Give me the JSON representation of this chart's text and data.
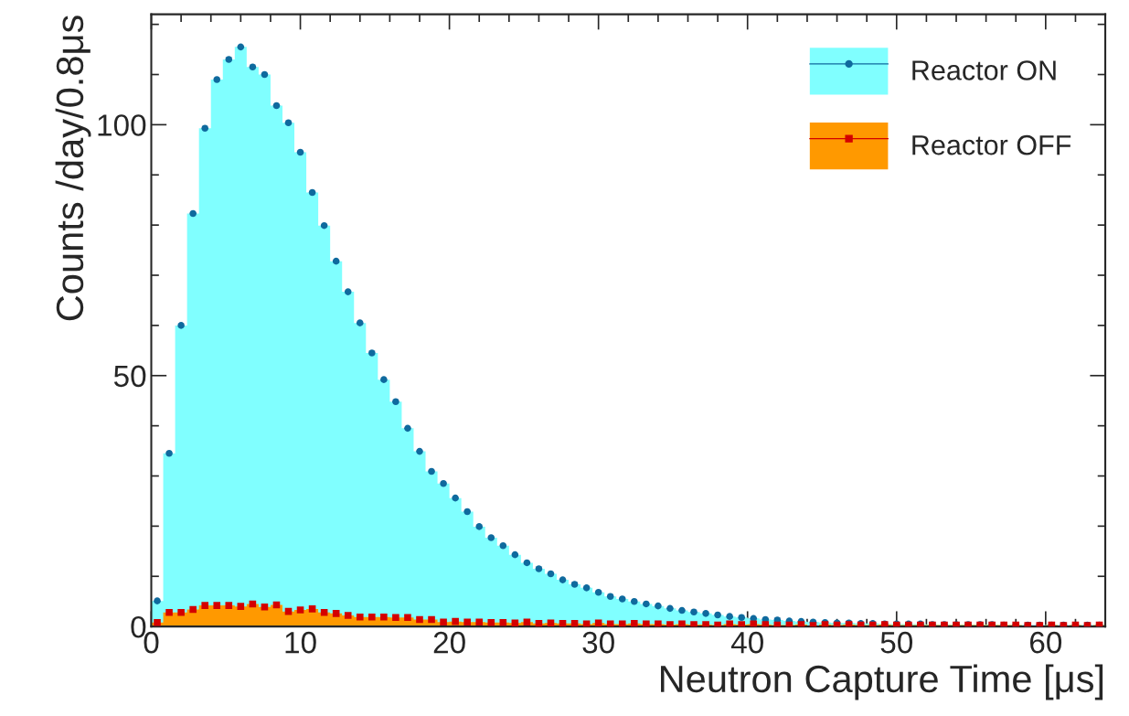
{
  "chart_data": {
    "type": "histogram",
    "xlabel": "Neutron Capture Time [μs]",
    "ylabel": "Counts /day/0.8μs",
    "bins": [
      0,
      0.8,
      1.6,
      2.4,
      3.2,
      4,
      4.8,
      5.6,
      6.4,
      7.2,
      8,
      8.8,
      9.6,
      10.4,
      11.2,
      12,
      12.8,
      13.6,
      14.4,
      15.2,
      16,
      16.8,
      17.6,
      18.4,
      19.2,
      20,
      20.8,
      21.6,
      22.4,
      23.2,
      24,
      24.8,
      25.6,
      26.4,
      27.2,
      28,
      28.8,
      29.6,
      30.4,
      31.2,
      32,
      32.8,
      33.6,
      34.4,
      35.2,
      36,
      36.8,
      37.6,
      38.4,
      39.2,
      40,
      40.8,
      41.6,
      42.4,
      43.2,
      44,
      44.8,
      45.6,
      46.4,
      47.2,
      48,
      48.8,
      49.6,
      50.4,
      51.2,
      52,
      52.8,
      53.6,
      54.4,
      55.2,
      56,
      56.8,
      57.6,
      58.4,
      59.2,
      60,
      60.8,
      61.6,
      62.4,
      63.2,
      64
    ],
    "series": [
      {
        "name": "Reactor ON",
        "color": "#80ffff",
        "values": [
          5.1,
          34.5,
          60,
          82.3,
          99.3,
          109,
          113,
          115.5,
          111.5,
          110,
          103.8,
          100.4,
          94.5,
          86.5,
          79.9,
          72.8,
          66.7,
          60.5,
          54.5,
          49.2,
          44.8,
          39.5,
          34.9,
          30.9,
          28.5,
          25.6,
          22.9,
          19.9,
          17.7,
          16.1,
          14.3,
          12.7,
          11.5,
          10.5,
          9.3,
          8.4,
          7.7,
          6.8,
          6.0,
          5.5,
          5.0,
          4.5,
          4.1,
          3.6,
          3.2,
          2.9,
          2.6,
          2.3,
          2.0,
          1.8,
          1.6,
          1.4,
          1.3,
          1.1,
          1.0,
          0.9,
          0.8,
          0.7,
          0.7,
          0.6,
          0.6,
          0.5,
          0.5,
          0.5,
          0.5,
          0.4,
          0.4,
          0.4,
          0.4,
          0.4,
          0.4,
          0.3,
          0.3,
          0.3,
          0.3,
          0.3,
          0.3,
          0.3,
          0.3,
          0.3
        ]
      },
      {
        "name": "Reactor OFF",
        "color": "#ff9900",
        "values": [
          0.8,
          2.8,
          2.8,
          3.4,
          4.2,
          4.2,
          4.2,
          4.0,
          4.5,
          3.9,
          4.3,
          3.0,
          3.3,
          3.5,
          2.8,
          2.6,
          2.2,
          1.9,
          1.9,
          1.9,
          1.8,
          1.8,
          1.4,
          1.4,
          0.9,
          1.0,
          0.9,
          0.9,
          0.8,
          0.8,
          0.7,
          0.9,
          0.6,
          0.7,
          0.6,
          0.6,
          0.5,
          0.7,
          0.5,
          0.5,
          0.6,
          0.5,
          0.5,
          0.4,
          0.5,
          0.4,
          0.4,
          0.3,
          0.5,
          0.4,
          0.5,
          0.4,
          0.3,
          0.3,
          0.4,
          0.2,
          0.4,
          0.3,
          0.4,
          0.3,
          0.3,
          0.4,
          0.3,
          0.3,
          0.3,
          0.3,
          0.3,
          0.3,
          0.3,
          0.3,
          0.3,
          0.3,
          0.3,
          0.2,
          0.2,
          0.3,
          0.2,
          0.3,
          0.2,
          0.3
        ]
      },
      {
        "type": "scatter",
        "color": "#0f6a9e",
        "marker": "circle",
        "x": [
          0.4,
          1.2,
          2,
          2.8,
          3.6,
          4.4,
          5.2,
          6,
          6.8,
          7.6,
          8.4,
          9.2,
          10,
          10.8,
          11.6,
          12.4,
          13.2,
          14,
          14.8,
          15.6,
          16.4,
          17.2,
          18,
          18.8,
          19.6,
          20.4,
          21.2,
          22,
          22.8,
          23.6,
          24.4,
          25.2,
          26,
          26.8,
          27.6,
          28.4,
          29.2,
          30,
          30.8,
          31.6,
          32.4,
          33.2,
          34,
          34.8,
          35.6,
          36.4,
          37.2,
          38,
          38.8,
          39.6,
          40.4,
          41.2,
          42,
          42.8,
          43.6,
          44.4,
          45.2,
          46,
          46.8,
          47.6,
          48.4,
          49.2,
          50,
          50.8,
          51.6,
          52.4,
          53.2,
          54,
          54.8,
          55.6,
          56.4,
          57.2,
          58,
          58.8,
          59.6,
          60.4,
          61.2,
          62,
          62.8,
          63.6
        ],
        "values": [
          5.1,
          34.5,
          60,
          82.3,
          99.3,
          109,
          113,
          115.5,
          111.5,
          110,
          103.8,
          100.4,
          94.5,
          86.5,
          79.9,
          72.8,
          66.7,
          60.5,
          54.5,
          49.2,
          44.8,
          39.5,
          34.9,
          30.9,
          28.5,
          25.6,
          22.9,
          19.9,
          17.7,
          16.1,
          14.3,
          12.7,
          11.5,
          10.5,
          9.3,
          8.4,
          7.7,
          6.8,
          6.0,
          5.5,
          5.0,
          4.5,
          4.1,
          3.6,
          3.2,
          2.9,
          2.6,
          2.3,
          2.0,
          1.8,
          1.6,
          1.4,
          1.3,
          1.1,
          1.0,
          0.9,
          0.8,
          0.7,
          0.7,
          0.6,
          0.6,
          0.5,
          0.5,
          0.5,
          0.5,
          0.4,
          0.4,
          0.4,
          0.4,
          0.4,
          0.4,
          0.3,
          0.3,
          0.3,
          0.3,
          0.3,
          0.3,
          0.3,
          0.3,
          0.3
        ]
      },
      {
        "type": "scatter",
        "color": "#d40000",
        "marker": "square",
        "x": [
          0.4,
          1.2,
          2,
          2.8,
          3.6,
          4.4,
          5.2,
          6,
          6.8,
          7.6,
          8.4,
          9.2,
          10,
          10.8,
          11.6,
          12.4,
          13.2,
          14,
          14.8,
          15.6,
          16.4,
          17.2,
          18,
          18.8,
          19.6,
          20.4,
          21.2,
          22,
          22.8,
          23.6,
          24.4,
          25.2,
          26,
          26.8,
          27.6,
          28.4,
          29.2,
          30,
          30.8,
          31.6,
          32.4,
          33.2,
          34,
          34.8,
          35.6,
          36.4,
          37.2,
          38,
          38.8,
          39.6,
          40.4,
          41.2,
          42,
          42.8,
          43.6,
          44.4,
          45.2,
          46,
          46.8,
          47.6,
          48.4,
          49.2,
          50,
          50.8,
          51.6,
          52.4,
          53.2,
          54,
          54.8,
          55.6,
          56.4,
          57.2,
          58,
          58.8,
          59.6,
          60.4,
          61.2,
          62,
          62.8,
          63.6
        ],
        "values": [
          0.8,
          2.8,
          2.8,
          3.4,
          4.2,
          4.2,
          4.2,
          4.0,
          4.5,
          3.9,
          4.3,
          3.0,
          3.3,
          3.5,
          2.8,
          2.6,
          2.2,
          1.9,
          1.9,
          1.9,
          1.8,
          1.8,
          1.4,
          1.4,
          0.9,
          1.0,
          0.9,
          0.9,
          0.8,
          0.8,
          0.7,
          0.9,
          0.6,
          0.7,
          0.6,
          0.6,
          0.5,
          0.7,
          0.5,
          0.5,
          0.6,
          0.5,
          0.5,
          0.4,
          0.5,
          0.4,
          0.4,
          0.3,
          0.5,
          0.4,
          0.5,
          0.4,
          0.3,
          0.3,
          0.4,
          0.2,
          0.4,
          0.3,
          0.4,
          0.3,
          0.3,
          0.4,
          0.3,
          0.3,
          0.3,
          0.3,
          0.3,
          0.3,
          0.3,
          0.3,
          0.3,
          0.3,
          0.3,
          0.2,
          0.2,
          0.3,
          0.2,
          0.3,
          0.2,
          0.3
        ]
      }
    ],
    "xlim": [
      0,
      64
    ],
    "ylim": [
      0,
      122
    ],
    "xticks": [
      0,
      10,
      20,
      30,
      40,
      50,
      60
    ],
    "yticks": [
      0,
      50,
      100
    ],
    "legend": "top right",
    "grid": false
  }
}
